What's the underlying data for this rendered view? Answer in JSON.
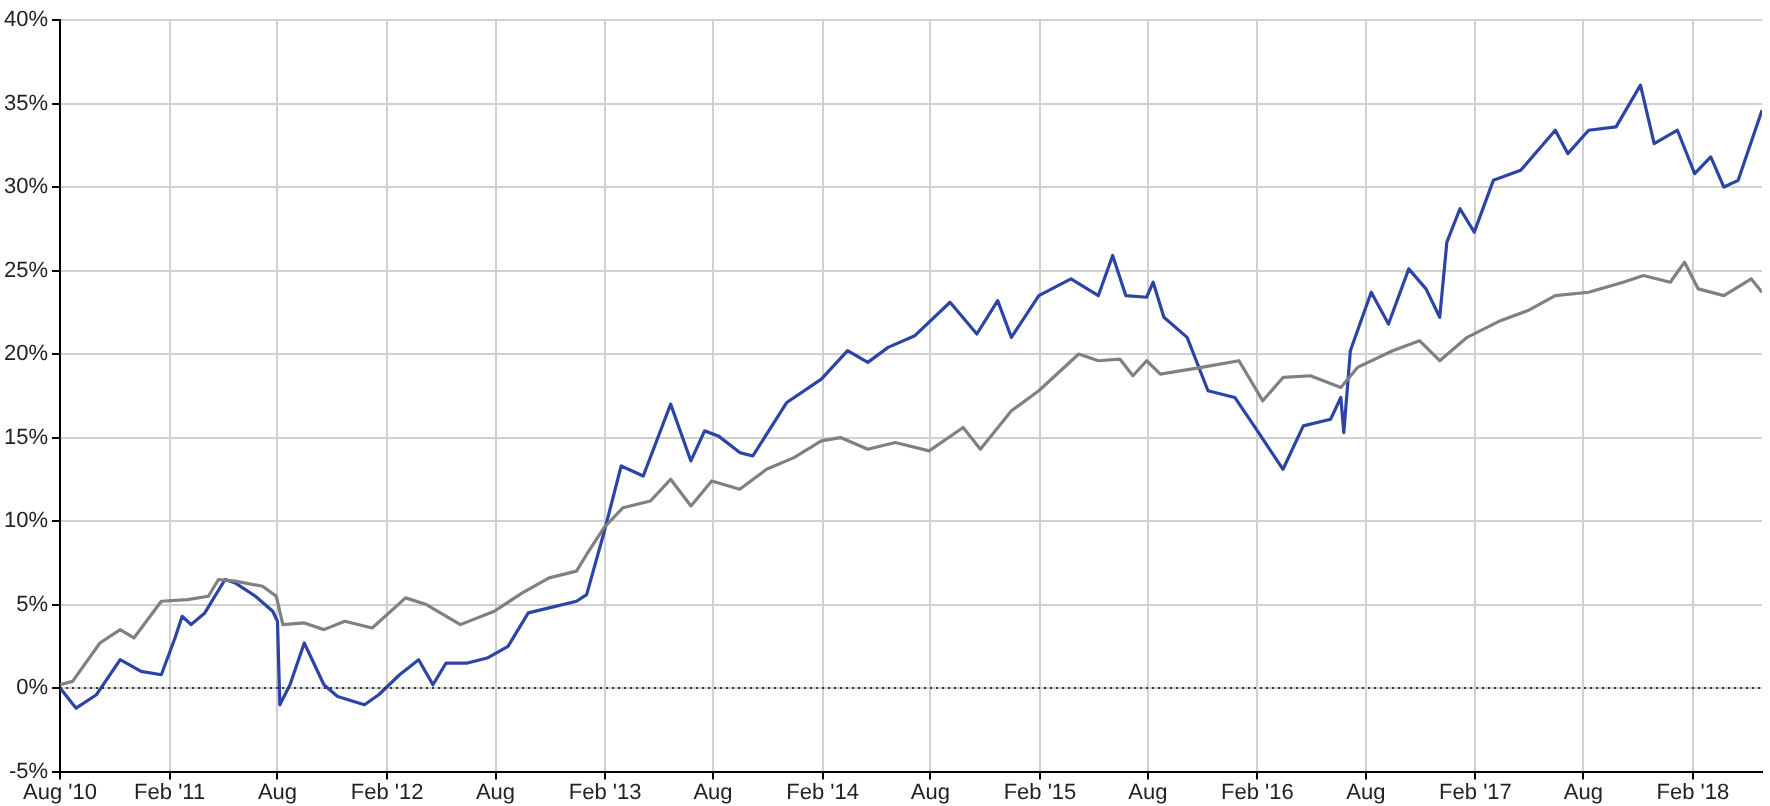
{
  "chart_data": {
    "type": "line",
    "xlim": [
      "2010-08-01",
      "2018-05-28"
    ],
    "ylim": [
      -5,
      40
    ],
    "xticks": [
      {
        "value": "2010-08-01",
        "label": "Aug '10"
      },
      {
        "value": "2011-02-01",
        "label": "Feb '11"
      },
      {
        "value": "2011-08-01",
        "label": "Aug"
      },
      {
        "value": "2012-02-01",
        "label": "Feb '12"
      },
      {
        "value": "2012-08-01",
        "label": "Aug"
      },
      {
        "value": "2013-02-01",
        "label": "Feb '13"
      },
      {
        "value": "2013-08-01",
        "label": "Aug"
      },
      {
        "value": "2014-02-01",
        "label": "Feb '14"
      },
      {
        "value": "2014-08-01",
        "label": "Aug"
      },
      {
        "value": "2015-02-01",
        "label": "Feb '15"
      },
      {
        "value": "2015-08-01",
        "label": "Aug"
      },
      {
        "value": "2016-02-01",
        "label": "Feb '16"
      },
      {
        "value": "2016-08-01",
        "label": "Aug"
      },
      {
        "value": "2017-02-01",
        "label": "Feb '17"
      },
      {
        "value": "2017-08-01",
        "label": "Aug"
      },
      {
        "value": "2018-02-01",
        "label": "Feb '18"
      }
    ],
    "yticks": [
      {
        "value": -5,
        "label": "-5%"
      },
      {
        "value": 0,
        "label": "0%"
      },
      {
        "value": 5,
        "label": "5%"
      },
      {
        "value": 10,
        "label": "10%"
      },
      {
        "value": 15,
        "label": "15%"
      },
      {
        "value": 20,
        "label": "20%"
      },
      {
        "value": 25,
        "label": "25%"
      },
      {
        "value": 30,
        "label": "30%"
      },
      {
        "value": 35,
        "label": "35%"
      },
      {
        "value": 40,
        "label": "40%"
      }
    ],
    "grid": true,
    "legend": false,
    "marker": "none",
    "line_style": "solid",
    "ref_lines": [
      {
        "axis": "y",
        "value": 0,
        "color": "#333333",
        "line_style": "dotted"
      }
    ],
    "series": [
      {
        "color": "#808080",
        "x": [
          "2010-08-01",
          "2010-08-22",
          "2010-10-07",
          "2010-11-10",
          "2010-12-03",
          "2011-01-18",
          "2011-03-03",
          "2011-04-07",
          "2011-04-24",
          "2011-05-22",
          "2011-07-07",
          "2011-07-30",
          "2011-08-10",
          "2011-09-15",
          "2011-10-18",
          "2011-11-22",
          "2012-01-07",
          "2012-03-03",
          "2012-04-07",
          "2012-06-03",
          "2012-07-30",
          "2012-09-15",
          "2012-10-30",
          "2012-12-15",
          "2013-01-01",
          "2013-01-30",
          "2013-03-03",
          "2013-04-18",
          "2013-05-22",
          "2013-06-25",
          "2013-07-30",
          "2013-09-15",
          "2013-10-30",
          "2013-12-15",
          "2014-01-30",
          "2014-03-03",
          "2014-04-18",
          "2014-06-03",
          "2014-07-30",
          "2014-09-25",
          "2014-10-24",
          "2014-12-15",
          "2015-01-30",
          "2015-04-07",
          "2015-05-10",
          "2015-06-15",
          "2015-07-07",
          "2015-07-30",
          "2015-08-22",
          "2015-10-30",
          "2016-01-01",
          "2016-02-10",
          "2016-03-15",
          "2016-04-30",
          "2016-06-20",
          "2016-07-18",
          "2016-09-15",
          "2016-10-30",
          "2016-12-03",
          "2017-01-18",
          "2017-03-15",
          "2017-04-30",
          "2017-06-15",
          "2017-08-10",
          "2017-10-07",
          "2017-11-10",
          "2017-12-25",
          "2018-01-18",
          "2018-02-10",
          "2018-03-25",
          "2018-05-10",
          "2018-05-28"
        ],
        "values": [
          0.2,
          0.4,
          2.7,
          3.5,
          3.0,
          5.2,
          5.3,
          5.5,
          6.5,
          6.4,
          6.1,
          5.5,
          3.8,
          3.9,
          3.5,
          4.0,
          3.6,
          5.4,
          5.0,
          3.8,
          4.6,
          5.7,
          6.6,
          7.0,
          8.0,
          9.6,
          10.8,
          11.2,
          12.5,
          10.9,
          12.4,
          11.9,
          13.1,
          13.8,
          14.8,
          15.0,
          14.3,
          14.7,
          14.2,
          15.6,
          14.3,
          16.6,
          17.8,
          20.0,
          19.6,
          19.7,
          18.7,
          19.6,
          18.8,
          19.2,
          19.6,
          17.2,
          18.6,
          18.7,
          18.0,
          19.2,
          20.2,
          20.8,
          19.6,
          21.0,
          22.0,
          22.6,
          23.5,
          23.7,
          24.3,
          24.7,
          24.3,
          25.5,
          23.9,
          23.5,
          24.5,
          23.7
        ]
      },
      {
        "color": "#2b44a6",
        "x": [
          "2010-08-01",
          "2010-08-28",
          "2010-10-01",
          "2010-11-10",
          "2010-12-15",
          "2011-01-18",
          "2011-02-10",
          "2011-02-22",
          "2011-03-09",
          "2011-04-01",
          "2011-05-05",
          "2011-05-22",
          "2011-06-25",
          "2011-07-24",
          "2011-08-01",
          "2011-08-05",
          "2011-08-22",
          "2011-09-15",
          "2011-10-18",
          "2011-11-10",
          "2011-12-25",
          "2012-01-18",
          "2012-02-22",
          "2012-03-25",
          "2012-04-18",
          "2012-05-10",
          "2012-06-15",
          "2012-07-18",
          "2012-08-22",
          "2012-09-25",
          "2012-10-30",
          "2012-12-15",
          "2013-01-01",
          "2013-01-30",
          "2013-02-28",
          "2013-04-06",
          "2013-05-22",
          "2013-06-25",
          "2013-07-18",
          "2013-08-10",
          "2013-09-15",
          "2013-10-07",
          "2013-12-03",
          "2014-01-30",
          "2014-03-15",
          "2014-04-18",
          "2014-05-22",
          "2014-07-06",
          "2014-09-03",
          "2014-10-18",
          "2014-11-22",
          "2014-12-15",
          "2015-01-30",
          "2015-03-25",
          "2015-05-10",
          "2015-06-03",
          "2015-06-25",
          "2015-07-30",
          "2015-08-10",
          "2015-08-28",
          "2015-10-06",
          "2015-11-10",
          "2015-12-25",
          "2016-01-30",
          "2016-03-15",
          "2016-04-18",
          "2016-06-03",
          "2016-06-20",
          "2016-06-25",
          "2016-07-06",
          "2016-08-10",
          "2016-09-08",
          "2016-10-12",
          "2016-11-10",
          "2016-12-03",
          "2016-12-15",
          "2017-01-06",
          "2017-01-30",
          "2017-03-03",
          "2017-04-18",
          "2017-06-15",
          "2017-07-06",
          "2017-08-10",
          "2017-09-25",
          "2017-11-05",
          "2017-11-28",
          "2018-01-06",
          "2018-02-04",
          "2018-03-03",
          "2018-03-25",
          "2018-04-18",
          "2018-05-28"
        ],
        "values": [
          0,
          -1.2,
          -0.4,
          1.7,
          1.0,
          0.8,
          3.0,
          4.3,
          3.8,
          4.5,
          6.5,
          6.3,
          5.5,
          4.6,
          4.0,
          -1.0,
          0.2,
          2.7,
          0.2,
          -0.5,
          -1.0,
          -0.4,
          0.8,
          1.7,
          0.2,
          1.5,
          1.5,
          1.8,
          2.5,
          4.5,
          4.8,
          5.2,
          5.6,
          9.3,
          13.3,
          12.7,
          17.0,
          13.6,
          15.4,
          15.1,
          14.1,
          13.9,
          17.1,
          18.5,
          20.2,
          19.5,
          20.4,
          21.1,
          23.1,
          21.2,
          23.2,
          21.0,
          23.5,
          24.5,
          23.5,
          25.9,
          23.5,
          23.4,
          24.3,
          22.2,
          21.0,
          17.8,
          17.4,
          15.5,
          13.1,
          15.7,
          16.1,
          17.4,
          15.3,
          20.2,
          23.7,
          21.8,
          25.1,
          23.9,
          22.2,
          26.7,
          28.7,
          27.3,
          30.4,
          31.0,
          33.4,
          32.0,
          33.4,
          33.6,
          36.1,
          32.6,
          33.4,
          30.8,
          31.8,
          30.0,
          30.4,
          34.6
        ]
      }
    ]
  }
}
